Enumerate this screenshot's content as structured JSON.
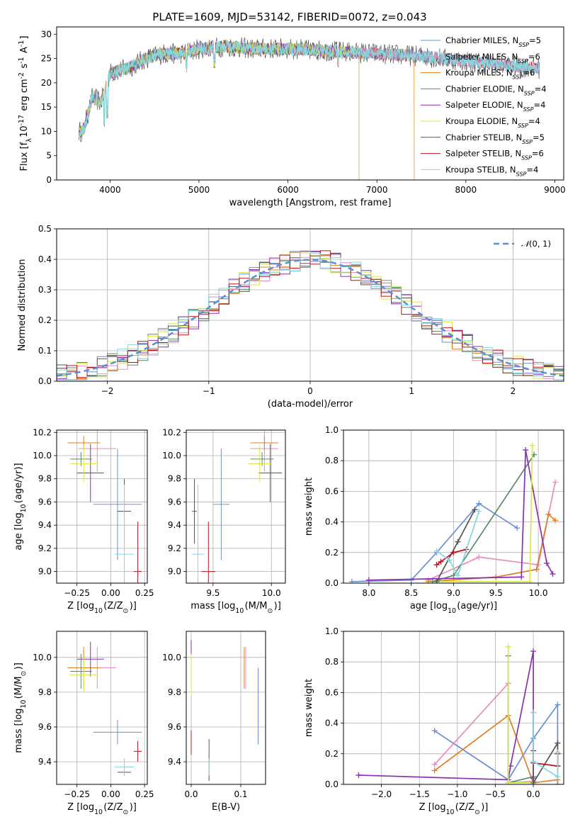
{
  "chart_data": [
    {
      "type": "line",
      "title": "PLATE=1609, MJD=53142, FIBERID=0072, z=0.043",
      "xlabel": "wavelength [Angstrom, rest frame]",
      "ylabel": "Flux [f$_\\lambda$10$^{-17}$ erg cm$^{-2}$ s$^{-1}$ A$^{-1}$]",
      "xlim": [
        3400,
        9100
      ],
      "ylim": [
        0,
        31.5
      ],
      "xticks": [
        4000,
        5000,
        6000,
        7000,
        8000,
        9000
      ],
      "yticks": [
        0,
        5,
        10,
        15,
        20,
        25,
        30
      ],
      "legend_position": "top-right",
      "series": [
        {
          "name": "Chabrier MILES",
          "nssp": 5,
          "color": "#6a8fd6"
        },
        {
          "name": "Salpeter MILES",
          "nssp": 6,
          "color": "#e88dbf"
        },
        {
          "name": "Kroupa MILES",
          "nssp": 6,
          "color": "#e07e22"
        },
        {
          "name": "Chabrier ELODIE",
          "nssp": 4,
          "color": "#5a8a68"
        },
        {
          "name": "Salpeter ELODIE",
          "nssp": 4,
          "color": "#8a2fb0"
        },
        {
          "name": "Kroupa ELODIE",
          "nssp": 4,
          "color": "#d8e84a"
        },
        {
          "name": "Chabrier STELIB",
          "nssp": 5,
          "color": "#555555"
        },
        {
          "name": "Salpeter STELIB",
          "nssp": 6,
          "color": "#b8141e"
        },
        {
          "name": "Kroupa STELIB",
          "nssp": 4,
          "color": "#86d6dc"
        }
      ],
      "approx_continuum": {
        "x": [
          3700,
          3800,
          3900,
          4000,
          4200,
          4400,
          4600,
          4800,
          5000,
          5300,
          5600,
          6000,
          6500,
          7000,
          7500,
          8000,
          8500,
          8800
        ],
        "y": [
          10,
          17,
          16,
          22,
          23,
          25,
          26,
          26,
          27,
          27.5,
          27,
          27,
          26.5,
          26,
          25.5,
          24.5,
          23.5,
          23
        ]
      }
    },
    {
      "type": "histogram",
      "xlabel": "(data-model)/error",
      "ylabel": "Normed distribution",
      "xlim": [
        -2.5,
        2.5
      ],
      "ylim": [
        0,
        0.5
      ],
      "xticks": [
        -2,
        -1,
        0,
        1,
        2
      ],
      "yticks": [
        0.0,
        0.1,
        0.2,
        0.3,
        0.4,
        0.5
      ],
      "grid": true,
      "legend_position": "top-right",
      "reference_curve": {
        "label": "N(0,1)",
        "mean": 0,
        "sigma": 1,
        "color": "#5b8fd9"
      },
      "bin_edges": [
        -2.5,
        -2.4,
        -2.3,
        -2.2,
        -2.1,
        -2.0,
        -1.9,
        -1.8,
        -1.7,
        -1.6,
        -1.5,
        -1.4,
        -1.3,
        -1.2,
        -1.1,
        -1.0,
        -0.9,
        -0.8,
        -0.7,
        -0.6,
        -0.5,
        -0.4,
        -0.3,
        -0.2,
        -0.1,
        0.0,
        0.1,
        0.2,
        0.3,
        0.4,
        0.5,
        0.6,
        0.7,
        0.8,
        0.9,
        1.0,
        1.1,
        1.2,
        1.3,
        1.4,
        1.5,
        1.6,
        1.7,
        1.8,
        1.9,
        2.0,
        2.1,
        2.2,
        2.3,
        2.4,
        2.5
      ]
    },
    {
      "type": "errorbar",
      "xlabel": "Z [log$_{10}$(Z/Z$_\\odot$)]",
      "ylabel": "age  [log$_{10}$(age/yr)]",
      "xlim": [
        -0.4,
        0.27
      ],
      "ylim": [
        8.9,
        10.22
      ],
      "xticks": [
        -0.25,
        0.0,
        0.25
      ],
      "yticks": [
        9.0,
        9.2,
        9.4,
        9.6,
        9.8,
        10.0,
        10.2
      ],
      "points": [
        {
          "model": "Chabrier MILES",
          "x": 0.05,
          "xerr": 0.18,
          "y": 9.58,
          "yerr": 0.48
        },
        {
          "model": "Salpeter MILES",
          "x": -0.1,
          "xerr": 0.14,
          "y": 10.06,
          "yerr": 0.2
        },
        {
          "model": "Kroupa MILES",
          "x": -0.2,
          "xerr": 0.12,
          "y": 10.11,
          "yerr": 0.06
        },
        {
          "model": "Chabrier ELODIE",
          "x": -0.22,
          "xerr": 0.08,
          "y": 9.97,
          "yerr": 0.06
        },
        {
          "model": "Salpeter ELODIE",
          "x": -0.15,
          "xerr": 0.1,
          "y": 9.85,
          "yerr": 0.25
        },
        {
          "model": "Kroupa ELODIE",
          "x": -0.2,
          "xerr": 0.1,
          "y": 9.93,
          "yerr": 0.16
        },
        {
          "model": "Chabrier STELIB",
          "x": 0.1,
          "xerr": 0.05,
          "y": 9.52,
          "yerr": 0.28
        },
        {
          "model": "Salpeter STELIB",
          "x": 0.2,
          "xerr": 0.03,
          "y": 9.0,
          "yerr": 0.43
        },
        {
          "model": "Kroupa STELIB",
          "x": 0.1,
          "xerr": 0.07,
          "y": 9.15,
          "yerr": 0.6
        }
      ]
    },
    {
      "type": "errorbar",
      "xlabel": "mass [log$_{10}$(M/M$_\\odot$)]",
      "ylabel": "",
      "xlim": [
        9.27,
        10.12
      ],
      "ylim": [
        8.9,
        10.22
      ],
      "xticks": [
        9.5,
        10.0
      ],
      "yticks": [
        9.0,
        9.2,
        9.4,
        9.6,
        9.8,
        10.0,
        10.2
      ],
      "points": [
        {
          "model": "Chabrier MILES",
          "x": 9.57,
          "xerr": 0.07,
          "y": 9.58,
          "yerr": 0.48
        },
        {
          "model": "Salpeter MILES",
          "x": 9.94,
          "xerr": 0.12,
          "y": 10.06,
          "yerr": 0.2
        },
        {
          "model": "Kroupa MILES",
          "x": 9.94,
          "xerr": 0.12,
          "y": 10.11,
          "yerr": 0.06
        },
        {
          "model": "Chabrier ELODIE",
          "x": 9.92,
          "xerr": 0.1,
          "y": 9.97,
          "yerr": 0.06
        },
        {
          "model": "Salpeter ELODIE",
          "x": 9.99,
          "xerr": 0.1,
          "y": 9.85,
          "yerr": 0.25
        },
        {
          "model": "Kroupa ELODIE",
          "x": 9.9,
          "xerr": 0.1,
          "y": 9.93,
          "yerr": 0.16
        },
        {
          "model": "Chabrier STELIB",
          "x": 9.34,
          "xerr": 0.02,
          "y": 9.52,
          "yerr": 0.28
        },
        {
          "model": "Salpeter STELIB",
          "x": 9.46,
          "xerr": 0.06,
          "y": 9.0,
          "yerr": 0.43
        },
        {
          "model": "Kroupa STELIB",
          "x": 9.37,
          "xerr": 0.05,
          "y": 9.15,
          "yerr": 0.6
        }
      ]
    },
    {
      "type": "line",
      "xlabel": "age  [log$_{10}$(age/yr)]",
      "ylabel": "mass weight",
      "xlim": [
        7.7,
        10.3
      ],
      "ylim": [
        0,
        1.0
      ],
      "xticks": [
        8.0,
        8.5,
        9.0,
        9.5,
        10.0
      ],
      "yticks": [
        0.0,
        0.2,
        0.4,
        0.6,
        0.8,
        1.0
      ],
      "grid": true,
      "series": [
        {
          "model": "Chabrier MILES",
          "x": [
            7.8,
            8.5,
            8.8,
            9.3,
            9.75
          ],
          "y": [
            0.01,
            0.02,
            0.2,
            0.52,
            0.36
          ]
        },
        {
          "model": "Salpeter MILES",
          "x": [
            8.7,
            9.3,
            10.0,
            10.2
          ],
          "y": [
            0.02,
            0.17,
            0.12,
            0.66
          ]
        },
        {
          "model": "Kroupa MILES",
          "x": [
            8.7,
            9.5,
            9.98,
            10.12,
            10.2
          ],
          "y": [
            0.01,
            0.04,
            0.09,
            0.45,
            0.41
          ]
        },
        {
          "model": "Chabrier ELODIE",
          "x": [
            8.75,
            9.0,
            9.95
          ],
          "y": [
            0.01,
            0.05,
            0.84
          ]
        },
        {
          "model": "Salpeter ELODIE",
          "x": [
            8.0,
            9.8,
            9.85,
            10.1,
            10.17
          ],
          "y": [
            0.02,
            0.04,
            0.87,
            0.13,
            0.06
          ]
        },
        {
          "model": "Kroupa ELODIE",
          "x": [
            8.8,
            9.9,
            9.93
          ],
          "y": [
            0.01,
            0.01,
            0.9
          ]
        },
        {
          "model": "Chabrier STELIB",
          "x": [
            8.8,
            9.05,
            9.25
          ],
          "y": [
            0.01,
            0.27,
            0.48
          ]
        },
        {
          "model": "Salpeter STELIB",
          "x": [
            8.8,
            8.85,
            9.0,
            9.15
          ],
          "y": [
            0.12,
            0.14,
            0.2,
            0.22
          ]
        },
        {
          "model": "Kroupa STELIB",
          "x": [
            8.8,
            8.95,
            9.05,
            9.3
          ],
          "y": [
            0.21,
            0.15,
            0.05,
            0.47
          ]
        }
      ]
    },
    {
      "type": "errorbar",
      "xlabel": "Z [log$_{10}$(Z/Z$_\\odot$)]",
      "ylabel": "mass [log$_{10}$(M/M$_\\odot$)]",
      "xlim": [
        -0.4,
        0.27
      ],
      "ylim": [
        9.27,
        10.15
      ],
      "xticks": [
        -0.25,
        0.0,
        0.25
      ],
      "yticks": [
        9.4,
        9.6,
        9.8,
        10.0
      ],
      "points": [
        {
          "model": "Chabrier MILES",
          "x": 0.05,
          "xerr": 0.18,
          "y": 9.57,
          "yerr": 0.07
        },
        {
          "model": "Salpeter MILES",
          "x": -0.1,
          "xerr": 0.14,
          "y": 9.94,
          "yerr": 0.12
        },
        {
          "model": "Kroupa MILES",
          "x": -0.2,
          "xerr": 0.12,
          "y": 9.94,
          "yerr": 0.12
        },
        {
          "model": "Chabrier ELODIE",
          "x": -0.22,
          "xerr": 0.08,
          "y": 9.92,
          "yerr": 0.1
        },
        {
          "model": "Salpeter ELODIE",
          "x": -0.15,
          "xerr": 0.1,
          "y": 9.99,
          "yerr": 0.1
        },
        {
          "model": "Kroupa ELODIE",
          "x": -0.2,
          "xerr": 0.1,
          "y": 9.9,
          "yerr": 0.1
        },
        {
          "model": "Chabrier STELIB",
          "x": 0.1,
          "xerr": 0.05,
          "y": 9.34,
          "yerr": 0.02
        },
        {
          "model": "Salpeter STELIB",
          "x": 0.2,
          "xerr": 0.03,
          "y": 9.46,
          "yerr": 0.06
        },
        {
          "model": "Kroupa STELIB",
          "x": 0.1,
          "xerr": 0.07,
          "y": 9.37,
          "yerr": 0.05
        }
      ]
    },
    {
      "type": "errorbar",
      "xlabel": "E(B-V)",
      "ylabel": "",
      "xlim": [
        -0.01,
        0.15
      ],
      "ylim": [
        9.27,
        10.15
      ],
      "xticks": [
        0.0,
        0.1
      ],
      "yticks": [
        9.4,
        9.6,
        9.8,
        10.0
      ],
      "points": [
        {
          "model": "Chabrier MILES",
          "x": 0.135,
          "xerr": 0.0,
          "y": 9.72,
          "yerr": 0.22
        },
        {
          "model": "Salpeter MILES",
          "x": 0.11,
          "xerr": 0.0,
          "y": 9.94,
          "yerr": 0.12
        },
        {
          "model": "Kroupa MILES",
          "x": 0.107,
          "xerr": 0.0,
          "y": 9.94,
          "yerr": 0.12
        },
        {
          "model": "Chabrier ELODIE",
          "x": 0.0,
          "xerr": 0.0,
          "y": 9.92,
          "yerr": 0.1
        },
        {
          "model": "Salpeter ELODIE",
          "x": 0.0,
          "xerr": 0.0,
          "y": 9.99,
          "yerr": 0.11
        },
        {
          "model": "Kroupa ELODIE",
          "x": 0.0,
          "xerr": 0.0,
          "y": 9.9,
          "yerr": 0.12
        },
        {
          "model": "Chabrier STELIB",
          "x": 0.036,
          "xerr": 0.0,
          "y": 9.41,
          "yerr": 0.12
        },
        {
          "model": "Salpeter STELIB",
          "x": 0.0,
          "xerr": 0.0,
          "y": 9.51,
          "yerr": 0.07
        },
        {
          "model": "Kroupa STELIB",
          "x": 0.036,
          "xerr": 0.0,
          "y": 9.37,
          "yerr": 0.05
        }
      ]
    },
    {
      "type": "line",
      "xlabel": "Z [log$_{10}$(Z/Z$_\\odot$)]",
      "ylabel": "mass weight",
      "xlim": [
        -2.5,
        0.4
      ],
      "ylim": [
        0,
        1.0
      ],
      "xticks": [
        -2.0,
        -1.5,
        -1.0,
        -0.5,
        0.0
      ],
      "yticks": [
        0.0,
        0.2,
        0.4,
        0.6,
        0.8,
        1.0
      ],
      "grid": true,
      "series": [
        {
          "model": "Chabrier MILES",
          "x": [
            -1.3,
            -0.33,
            0.0,
            0.32,
            0.32
          ],
          "y": [
            0.35,
            0.03,
            0.3,
            0.52,
            0.0
          ]
        },
        {
          "model": "Salpeter MILES",
          "x": [
            -1.3,
            -0.33,
            -0.33,
            0.0
          ],
          "y": [
            0.13,
            0.66,
            0.01,
            0.02
          ]
        },
        {
          "model": "Kroupa MILES",
          "x": [
            -1.3,
            -0.33,
            0.0,
            0.32
          ],
          "y": [
            0.09,
            0.45,
            0.01,
            0.03
          ]
        },
        {
          "model": "Chabrier ELODIE",
          "x": [
            -0.33,
            -0.33,
            0.0
          ],
          "y": [
            0.84,
            0.01,
            0.05
          ]
        },
        {
          "model": "Salpeter ELODIE",
          "x": [
            -2.3,
            -0.33,
            -0.3,
            0.0,
            0.0
          ],
          "y": [
            0.06,
            0.03,
            0.12,
            0.87,
            0.04
          ]
        },
        {
          "model": "Kroupa ELODIE",
          "x": [
            -0.33,
            -0.33,
            0.0
          ],
          "y": [
            0.9,
            0.01,
            0.01
          ]
        },
        {
          "model": "Chabrier STELIB",
          "x": [
            0.0,
            0.0,
            0.32,
            0.32
          ],
          "y": [
            0.47,
            0.01,
            0.27,
            0.12
          ]
        },
        {
          "model": "Salpeter STELIB",
          "x": [
            0.0,
            0.0,
            0.32,
            0.32
          ],
          "y": [
            0.22,
            0.14,
            0.12,
            0.2
          ]
        },
        {
          "model": "Kroupa STELIB",
          "x": [
            0.0,
            0.0,
            0.32,
            0.32
          ],
          "y": [
            0.47,
            0.15,
            0.05,
            0.21
          ]
        }
      ]
    }
  ]
}
